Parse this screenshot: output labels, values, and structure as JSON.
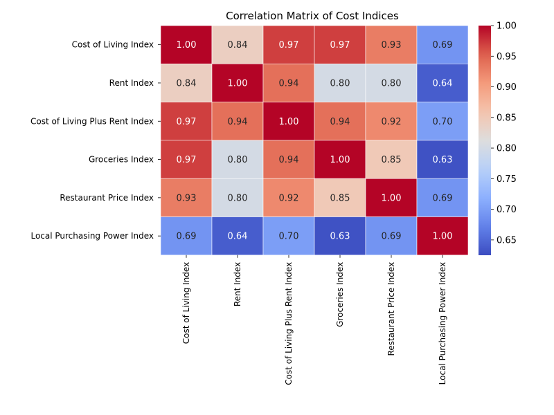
{
  "chart_data": {
    "type": "heatmap",
    "title": "Correlation Matrix of Cost Indices",
    "xlabel": "",
    "ylabel": "",
    "labels": [
      "Cost of Living Index",
      "Rent Index",
      "Cost of Living Plus Rent Index",
      "Groceries Index",
      "Restaurant Price Index",
      "Local Purchasing Power Index"
    ],
    "values": [
      [
        1.0,
        0.84,
        0.97,
        0.97,
        0.93,
        0.69
      ],
      [
        0.84,
        1.0,
        0.94,
        0.8,
        0.8,
        0.64
      ],
      [
        0.97,
        0.94,
        1.0,
        0.94,
        0.92,
        0.7
      ],
      [
        0.97,
        0.8,
        0.94,
        1.0,
        0.85,
        0.63
      ],
      [
        0.93,
        0.8,
        0.92,
        0.85,
        1.0,
        0.69
      ],
      [
        0.69,
        0.64,
        0.7,
        0.63,
        0.69,
        1.0
      ]
    ],
    "value_format": "0.00",
    "colormap": "coolwarm",
    "colorbar": {
      "range": [
        0.625,
        1.0
      ],
      "ticks": [
        0.65,
        0.7,
        0.75,
        0.8,
        0.85,
        0.9,
        0.95,
        1.0
      ],
      "tick_labels": [
        "0.65",
        "0.70",
        "0.75",
        "0.80",
        "0.85",
        "0.90",
        "0.95",
        "1.00"
      ]
    }
  }
}
